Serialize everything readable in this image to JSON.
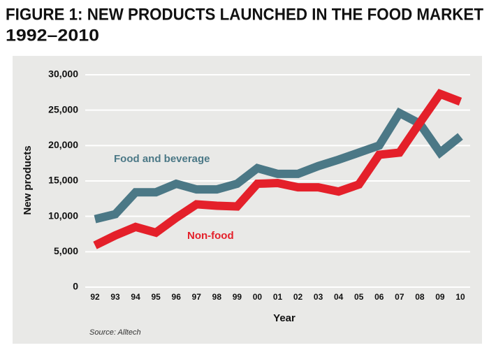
{
  "chart_data": {
    "type": "line",
    "title": "FIGURE 1: NEW PRODUCTS LAUNCHED IN THE FOOD MARKET",
    "subtitle": "1992–2010",
    "y_label": "New products",
    "x_label": "Year",
    "source": "Source: Alltech",
    "categories": [
      "92",
      "93",
      "94",
      "95",
      "96",
      "97",
      "98",
      "99",
      "00",
      "01",
      "02",
      "03",
      "04",
      "05",
      "06",
      "07",
      "08",
      "09",
      "10"
    ],
    "series": [
      {
        "name": "Food and beverage",
        "color": "#4b7886",
        "values": [
          9600,
          10300,
          13400,
          13400,
          14600,
          13800,
          13800,
          14600,
          16800,
          16000,
          16000,
          17100,
          18000,
          19000,
          20000,
          24600,
          23100,
          19000,
          21300
        ]
      },
      {
        "name": "Non-food",
        "color": "#e4202a",
        "values": [
          5900,
          7300,
          8500,
          7700,
          9800,
          11700,
          11500,
          11400,
          14600,
          14700,
          14100,
          14100,
          13500,
          14500,
          18700,
          19000,
          23200,
          27300,
          26200
        ]
      }
    ],
    "ylim": [
      0,
      30000
    ],
    "yticks": [
      0,
      {
        "value": 5000,
        "label": "5,000"
      },
      {
        "value": 10000,
        "label": "10,000"
      },
      {
        "value": 15000,
        "label": "15,000"
      },
      {
        "value": 20000,
        "label": "20,000"
      },
      {
        "value": 25000,
        "label": "25,000"
      },
      {
        "value": 30000,
        "label": "30,000"
      }
    ],
    "grid": true
  }
}
